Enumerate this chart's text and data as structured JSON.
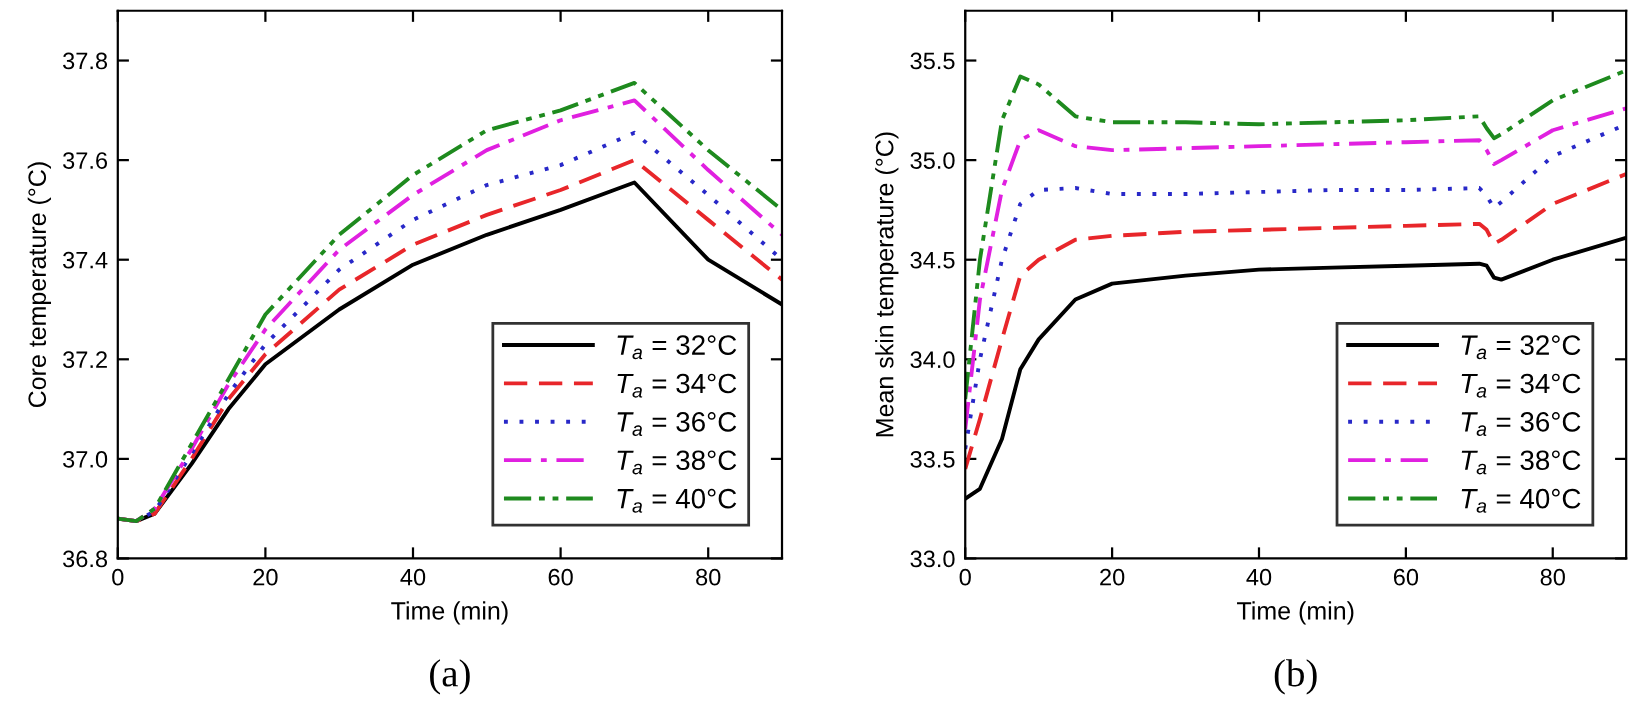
{
  "chart_data": [
    {
      "type": "line",
      "xlabel": "Time (min)",
      "ylabel": "Core temperature (°C)",
      "annotations": [
        "(a)"
      ],
      "xlim": [
        0,
        90
      ],
      "ylim": [
        36.8,
        37.9
      ],
      "xticks": [
        0,
        20,
        40,
        60,
        80
      ],
      "yticks": [
        {
          "value": 36.8,
          "label": "36.8"
        },
        {
          "value": 37.0,
          "label": "37.0"
        },
        {
          "value": 37.2,
          "label": "37.2"
        },
        {
          "value": 37.4,
          "label": "37.4"
        },
        {
          "value": 37.6,
          "label": "37.6"
        },
        {
          "value": 37.8,
          "label": "37.8"
        }
      ],
      "grid": false,
      "legend": "bottom right",
      "x": [
        0,
        2.5,
        5,
        10,
        15,
        20,
        30,
        40,
        50,
        60,
        70,
        80,
        90
      ],
      "series": [
        {
          "name": "T$_{a}$ = 32°C",
          "color": "#000000",
          "line_style": "solid",
          "values": [
            36.88,
            36.875,
            36.89,
            36.99,
            37.1,
            37.19,
            37.3,
            37.39,
            37.45,
            37.5,
            37.555,
            37.4,
            37.31
          ]
        },
        {
          "name": "T$_{a}$ = 34°C",
          "color": "#e8262a",
          "line_style": "dashed",
          "values": [
            36.88,
            36.875,
            36.89,
            37.0,
            37.12,
            37.21,
            37.34,
            37.43,
            37.49,
            37.54,
            37.6,
            37.48,
            37.36
          ]
        },
        {
          "name": "T$_{a}$ = 36°C",
          "color": "#2828c8",
          "line_style": "dotted",
          "values": [
            36.88,
            36.875,
            36.895,
            37.01,
            37.13,
            37.23,
            37.38,
            37.48,
            37.55,
            37.59,
            37.655,
            37.53,
            37.4
          ]
        },
        {
          "name": "T$_{a}$ = 38°C",
          "color": "#e020e0",
          "line_style": "dashdot",
          "values": [
            36.88,
            36.875,
            36.9,
            37.02,
            37.15,
            37.26,
            37.42,
            37.53,
            37.62,
            37.68,
            37.72,
            37.58,
            37.45
          ]
        },
        {
          "name": "T$_{a}$ = 40°C",
          "color": "#1e8a1e",
          "line_style": "dashdotdot",
          "values": [
            36.88,
            36.875,
            36.9,
            37.03,
            37.16,
            37.29,
            37.45,
            37.57,
            37.66,
            37.7,
            37.755,
            37.62,
            37.5
          ]
        }
      ]
    },
    {
      "type": "line",
      "xlabel": "Time (min)",
      "ylabel": "Mean skin temperature (°C)",
      "annotations": [
        "(b)"
      ],
      "xlim": [
        0,
        90
      ],
      "ylim": [
        33.0,
        35.75
      ],
      "xticks": [
        0,
        20,
        40,
        60,
        80
      ],
      "yticks": [
        {
          "value": 33.0,
          "label": "33.0"
        },
        {
          "value": 33.5,
          "label": "33.5"
        },
        {
          "value": 34.0,
          "label": "34.0"
        },
        {
          "value": 34.5,
          "label": "34.5"
        },
        {
          "value": 35.0,
          "label": "35.0"
        },
        {
          "value": 35.5,
          "label": "35.5"
        }
      ],
      "grid": false,
      "legend": "bottom right",
      "x": [
        0,
        2,
        5,
        7.5,
        10,
        15,
        20,
        30,
        40,
        50,
        60,
        70,
        71,
        72,
        73,
        80,
        90
      ],
      "series": [
        {
          "name": "T$_{a}$ = 32°C",
          "color": "#000000",
          "line_style": "solid",
          "values": [
            33.3,
            33.35,
            33.6,
            33.95,
            34.1,
            34.3,
            34.38,
            34.42,
            34.45,
            34.46,
            34.47,
            34.48,
            34.47,
            34.41,
            34.4,
            34.5,
            34.61
          ]
        },
        {
          "name": "T$_{a}$ = 34°C",
          "color": "#e8262a",
          "line_style": "dashed",
          "values": [
            33.45,
            33.7,
            34.1,
            34.42,
            34.5,
            34.6,
            34.62,
            34.64,
            34.65,
            34.66,
            34.67,
            34.68,
            34.65,
            34.58,
            34.6,
            34.78,
            34.93
          ]
        },
        {
          "name": "T$_{a}$ = 36°C",
          "color": "#2828c8",
          "line_style": "dotted",
          "values": [
            33.55,
            34.0,
            34.5,
            34.78,
            34.85,
            34.86,
            34.83,
            34.83,
            34.84,
            34.85,
            34.85,
            34.86,
            34.82,
            34.76,
            34.79,
            35.02,
            35.18
          ]
        },
        {
          "name": "T$_{a}$ = 38°C",
          "color": "#e020e0",
          "line_style": "dashdot",
          "values": [
            33.65,
            34.3,
            34.85,
            35.1,
            35.15,
            35.07,
            35.05,
            35.06,
            35.07,
            35.08,
            35.09,
            35.1,
            35.05,
            34.98,
            35.0,
            35.15,
            35.26
          ]
        },
        {
          "name": "T$_{a}$ = 40°C",
          "color": "#1e8a1e",
          "line_style": "dashdotdot",
          "values": [
            33.8,
            34.5,
            35.2,
            35.42,
            35.38,
            35.22,
            35.19,
            35.19,
            35.18,
            35.19,
            35.2,
            35.22,
            35.16,
            35.11,
            35.13,
            35.3,
            35.45
          ]
        }
      ]
    }
  ]
}
